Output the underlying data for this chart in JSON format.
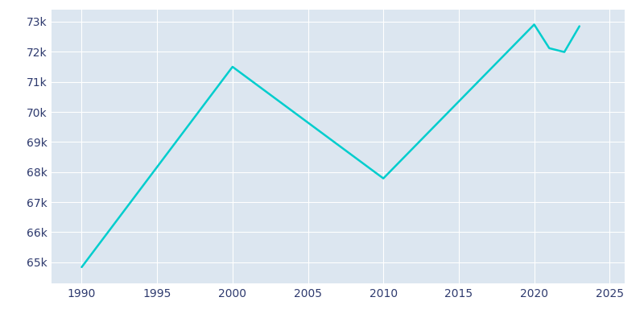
{
  "years": [
    1990,
    2000,
    2010,
    2020,
    2021,
    2022,
    2023
  ],
  "population": [
    64840,
    71500,
    67790,
    72906,
    72119,
    71992,
    72850
  ],
  "line_color": "#00CDCD",
  "bg_color": "#DCE6F0",
  "fig_bg_color": "#FFFFFF",
  "grid_color": "#FFFFFF",
  "tick_color": "#2E3A6E",
  "xlim": [
    1988,
    2026
  ],
  "ylim": [
    64300,
    73400
  ],
  "xticks": [
    1990,
    1995,
    2000,
    2005,
    2010,
    2015,
    2020,
    2025
  ],
  "ytick_values": [
    65000,
    66000,
    67000,
    68000,
    69000,
    70000,
    71000,
    72000,
    73000
  ],
  "ytick_labels": [
    "65k",
    "66k",
    "67k",
    "68k",
    "69k",
    "70k",
    "71k",
    "72k",
    "73k"
  ],
  "line_width": 1.8
}
